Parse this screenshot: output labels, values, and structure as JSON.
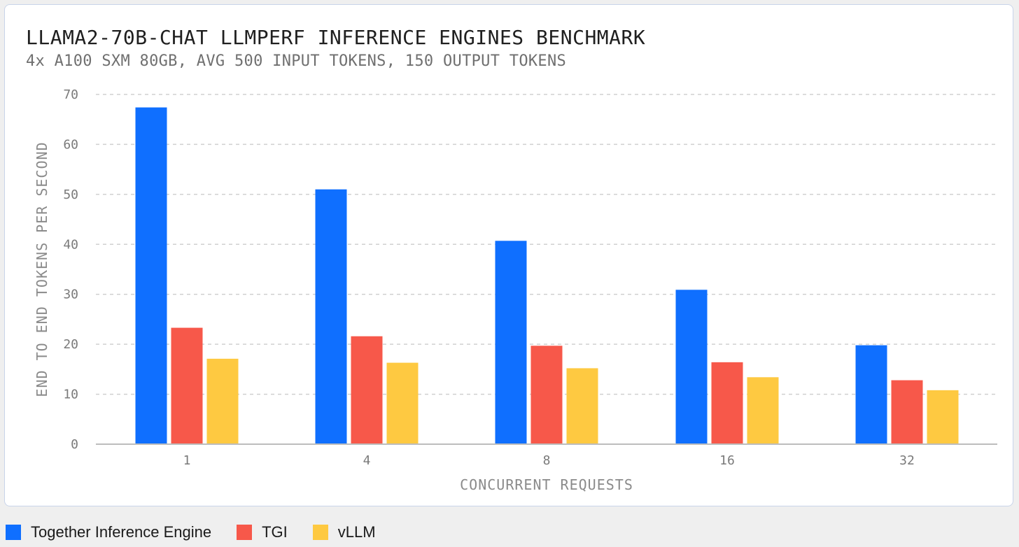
{
  "colors": {
    "together": "#0f6fff",
    "tgi": "#f7584a",
    "vllm": "#fec941",
    "grid": "#d0d0d0",
    "axis": "#bdbdbd"
  },
  "chart_data": {
    "type": "bar",
    "title": "LLAMA2-70B-CHAT LLMPERF INFERENCE ENGINES BENCHMARK",
    "subtitle": "4x A100 SXM 80GB, AVG 500 INPUT TOKENS, 150 OUTPUT TOKENS",
    "xlabel": "CONCURRENT REQUESTS",
    "ylabel": "END TO END TOKENS PER SECOND",
    "categories": [
      "1",
      "4",
      "8",
      "16",
      "32"
    ],
    "ylim": [
      0,
      70
    ],
    "yticks": [
      "0",
      "10",
      "20",
      "30",
      "40",
      "50",
      "60",
      "70"
    ],
    "grid": true,
    "legend_position": "bottom-left",
    "series": [
      {
        "name": "Together Inference Engine",
        "color_key": "together",
        "values": [
          67.4,
          51.0,
          40.7,
          30.9,
          19.8
        ]
      },
      {
        "name": "TGI",
        "color_key": "tgi",
        "values": [
          23.3,
          21.6,
          19.7,
          16.4,
          12.8
        ]
      },
      {
        "name": "vLLM",
        "color_key": "vllm",
        "values": [
          17.1,
          16.3,
          15.2,
          13.4,
          10.8
        ]
      }
    ]
  }
}
